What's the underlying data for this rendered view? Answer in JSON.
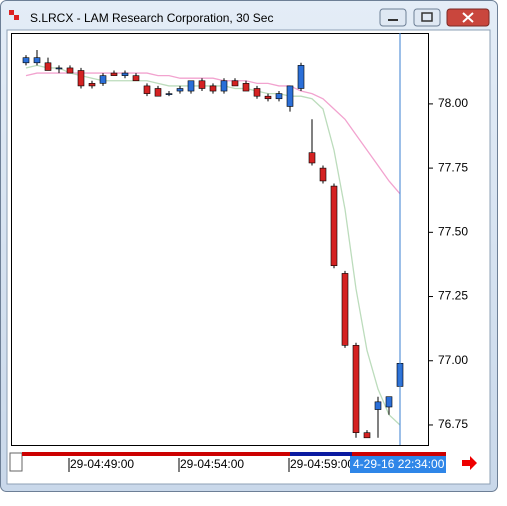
{
  "window": {
    "title": "S.LRCX - LAM Research Corporation, 30 Sec"
  },
  "chart_data": {
    "type": "candlestick",
    "categories": [
      null,
      null,
      null,
      null,
      "29-04:49:00",
      null,
      null,
      null,
      null,
      null,
      null,
      null,
      null,
      null,
      "29-04:54:00",
      null,
      null,
      null,
      null,
      null,
      null,
      null,
      null,
      null,
      "29-04:59:00",
      null,
      null,
      null,
      null,
      null,
      null,
      null,
      null,
      null,
      null
    ],
    "open": [
      78.16,
      78.16,
      78.16,
      78.14,
      78.14,
      78.13,
      78.08,
      78.08,
      78.12,
      78.11,
      78.11,
      78.07,
      78.06,
      78.04,
      78.05,
      78.05,
      78.09,
      78.07,
      78.05,
      78.09,
      78.08,
      78.06,
      78.03,
      78.02,
      77.99,
      78.06,
      77.81,
      77.75,
      77.68,
      77.34,
      77.06,
      76.72,
      76.81,
      76.82,
      76.9
    ],
    "high": [
      78.19,
      78.21,
      78.18,
      78.15,
      78.15,
      78.14,
      78.09,
      78.12,
      78.13,
      78.13,
      78.12,
      78.08,
      78.07,
      78.05,
      78.07,
      78.09,
      78.1,
      78.08,
      78.1,
      78.1,
      78.09,
      78.07,
      78.04,
      78.05,
      78.07,
      78.16,
      77.94,
      77.76,
      77.69,
      77.35,
      77.07,
      76.73,
      76.86,
      76.86,
      77.06
    ],
    "low": [
      78.15,
      78.15,
      78.13,
      78.12,
      78.12,
      78.06,
      78.06,
      78.07,
      78.11,
      78.1,
      78.09,
      78.03,
      78.03,
      78.03,
      78.04,
      78.04,
      78.05,
      78.04,
      78.04,
      78.07,
      78.05,
      78.02,
      78.01,
      78.01,
      77.97,
      78.05,
      77.76,
      77.69,
      77.36,
      77.05,
      76.7,
      76.7,
      76.7,
      76.79,
      76.85
    ],
    "close": [
      78.18,
      78.18,
      78.13,
      78.14,
      78.12,
      78.07,
      78.07,
      78.11,
      78.11,
      78.12,
      78.09,
      78.04,
      78.03,
      78.04,
      78.06,
      78.09,
      78.06,
      78.05,
      78.09,
      78.07,
      78.05,
      78.03,
      78.02,
      78.04,
      78.07,
      78.15,
      77.77,
      77.7,
      77.37,
      77.06,
      76.72,
      76.7,
      76.84,
      76.86,
      76.99
    ],
    "up_color": "#2b6fd8",
    "down_color": "#d42222",
    "series": [
      {
        "color": "#f2a3cf",
        "values": [
          78.11,
          78.12,
          78.12,
          78.12,
          78.12,
          78.12,
          78.12,
          78.12,
          78.12,
          78.12,
          78.12,
          78.12,
          78.11,
          78.11,
          78.1,
          78.1,
          78.1,
          78.1,
          78.09,
          78.09,
          78.09,
          78.08,
          78.08,
          78.07,
          78.07,
          78.05,
          78.04,
          78.02,
          77.98,
          77.94,
          77.88,
          77.82,
          77.76,
          77.7,
          77.65
        ]
      },
      {
        "color": "#bcdcbc",
        "values": [
          78.14,
          78.15,
          78.14,
          78.14,
          78.12,
          78.11,
          78.1,
          78.09,
          78.09,
          78.09,
          78.09,
          78.09,
          78.08,
          78.07,
          78.07,
          78.07,
          78.07,
          78.07,
          78.07,
          78.06,
          78.06,
          78.05,
          78.04,
          78.04,
          78.03,
          78.03,
          78.02,
          77.98,
          77.82,
          77.59,
          77.28,
          77.04,
          76.89,
          76.79,
          76.75
        ]
      }
    ],
    "ylim": [
      76.672,
      78.276
    ],
    "yticks": [
      {
        "value": 76.75,
        "label": "76.75"
      },
      {
        "value": 77,
        "label": "77.00"
      },
      {
        "value": 77.25,
        "label": "77.25"
      },
      {
        "value": 77.5,
        "label": "77.50"
      },
      {
        "value": 77.75,
        "label": "77.75"
      },
      {
        "value": 78,
        "label": "78.00"
      }
    ],
    "cursor_label": "4-29-16 22:34:00"
  }
}
